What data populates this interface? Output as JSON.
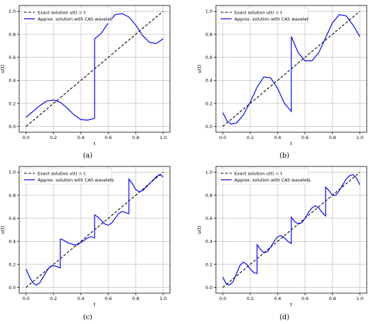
{
  "captions": [
    "(a)",
    "(b)",
    "(c)",
    "(d)"
  ],
  "colors": {
    "exact": "#000000",
    "approx": "#0000ff",
    "grid": "#b0b0b0"
  },
  "chart_data": [
    {
      "id": "a",
      "type": "line",
      "xlabel": "t",
      "ylabel": "u(t)",
      "xlim": [
        0,
        1
      ],
      "ylim": [
        0,
        1
      ],
      "xticks": [
        0.0,
        0.2,
        0.4,
        0.6,
        0.8,
        1.0
      ],
      "yticks": [
        0.0,
        0.2,
        0.4,
        0.6,
        0.8,
        1.0
      ],
      "grid": true,
      "legend_position": "top-left",
      "series": [
        {
          "name": "Exact solution u(t) = t",
          "style": "dashed",
          "color": "#000000",
          "x": [
            0,
            1
          ],
          "y": [
            0,
            1
          ]
        },
        {
          "name": "Approx. solution with CAS wavelet",
          "style": "solid",
          "color": "#0000ff",
          "x": [
            0.0,
            0.05,
            0.1,
            0.15,
            0.2,
            0.25,
            0.3,
            0.35,
            0.4,
            0.45,
            0.5,
            0.5,
            0.55,
            0.6,
            0.65,
            0.7,
            0.75,
            0.8,
            0.85,
            0.9,
            0.95,
            1.0
          ],
          "y": [
            0.08,
            0.13,
            0.18,
            0.22,
            0.23,
            0.21,
            0.16,
            0.1,
            0.06,
            0.055,
            0.07,
            0.76,
            0.81,
            0.9,
            0.97,
            0.98,
            0.95,
            0.88,
            0.79,
            0.73,
            0.72,
            0.76
          ]
        }
      ]
    },
    {
      "id": "b",
      "type": "line",
      "xlabel": "t",
      "ylabel": "u(t)",
      "xlim": [
        0,
        1
      ],
      "ylim": [
        0,
        1
      ],
      "xticks": [
        0.0,
        0.2,
        0.4,
        0.6,
        0.8,
        1.0
      ],
      "yticks": [
        0.0,
        0.2,
        0.4,
        0.6,
        0.8,
        1.0
      ],
      "grid": true,
      "legend_position": "top-left",
      "series": [
        {
          "name": "Exact solution u(t) = t",
          "style": "dashed",
          "color": "#000000",
          "x": [
            0,
            1
          ],
          "y": [
            0,
            1
          ]
        },
        {
          "name": "Approx. solution with CAS wavelet",
          "style": "solid",
          "color": "#0000ff",
          "x": [
            0.0,
            0.03,
            0.06,
            0.1,
            0.15,
            0.2,
            0.25,
            0.3,
            0.35,
            0.4,
            0.45,
            0.5,
            0.5,
            0.55,
            0.6,
            0.65,
            0.7,
            0.75,
            0.8,
            0.85,
            0.9,
            0.95,
            1.0
          ],
          "y": [
            0.12,
            0.05,
            0.02,
            0.03,
            0.1,
            0.21,
            0.34,
            0.43,
            0.42,
            0.33,
            0.2,
            0.13,
            0.78,
            0.64,
            0.57,
            0.57,
            0.64,
            0.77,
            0.9,
            0.97,
            0.96,
            0.88,
            0.78
          ]
        }
      ]
    },
    {
      "id": "c",
      "type": "line",
      "xlabel": "t",
      "ylabel": "u(t)",
      "xlim": [
        0,
        1
      ],
      "ylim": [
        0,
        1
      ],
      "xticks": [
        0.0,
        0.2,
        0.4,
        0.6,
        0.8,
        1.0
      ],
      "yticks": [
        0.0,
        0.2,
        0.4,
        0.6,
        0.8,
        1.0
      ],
      "grid": true,
      "legend_position": "top-left",
      "series": [
        {
          "name": "Exact solution u(t) = t",
          "style": "dashed",
          "color": "#000000",
          "x": [
            0,
            1
          ],
          "y": [
            0,
            1
          ]
        },
        {
          "name": "Approx. solution with CAS wavelets",
          "style": "solid",
          "color": "#0000ff",
          "x": [
            0.0,
            0.025,
            0.05,
            0.075,
            0.1,
            0.125,
            0.15,
            0.175,
            0.2,
            0.225,
            0.25,
            0.25,
            0.275,
            0.3,
            0.325,
            0.35,
            0.375,
            0.4,
            0.425,
            0.45,
            0.475,
            0.5,
            0.5,
            0.525,
            0.55,
            0.575,
            0.6,
            0.625,
            0.65,
            0.675,
            0.7,
            0.725,
            0.75,
            0.75,
            0.775,
            0.8,
            0.825,
            0.85,
            0.875,
            0.9,
            0.925,
            0.95,
            0.975,
            1.0
          ],
          "y": [
            0.16,
            0.09,
            0.04,
            0.02,
            0.04,
            0.09,
            0.14,
            0.18,
            0.19,
            0.18,
            0.17,
            0.42,
            0.41,
            0.39,
            0.38,
            0.37,
            0.37,
            0.39,
            0.41,
            0.43,
            0.44,
            0.43,
            0.63,
            0.61,
            0.58,
            0.55,
            0.54,
            0.56,
            0.6,
            0.64,
            0.66,
            0.65,
            0.64,
            0.94,
            0.9,
            0.85,
            0.83,
            0.84,
            0.87,
            0.9,
            0.93,
            0.96,
            0.98,
            0.96
          ]
        }
      ]
    },
    {
      "id": "d",
      "type": "line",
      "xlabel": "t",
      "ylabel": "u(t)",
      "xlim": [
        0,
        1
      ],
      "ylim": [
        0,
        1
      ],
      "xticks": [
        0.0,
        0.2,
        0.4,
        0.6,
        0.8,
        1.0
      ],
      "yticks": [
        0.0,
        0.2,
        0.4,
        0.6,
        0.8,
        1.0
      ],
      "grid": true,
      "legend_position": "top-left",
      "series": [
        {
          "name": "Exact solution u(t) = t",
          "style": "dashed",
          "color": "#000000",
          "x": [
            0,
            1
          ],
          "y": [
            0,
            1
          ]
        },
        {
          "name": "Approx. solution with CAS wavelets",
          "style": "solid",
          "color": "#0000ff",
          "x": [
            0.0,
            0.025,
            0.05,
            0.075,
            0.1,
            0.125,
            0.15,
            0.175,
            0.2,
            0.225,
            0.25,
            0.25,
            0.275,
            0.3,
            0.325,
            0.35,
            0.375,
            0.4,
            0.425,
            0.45,
            0.475,
            0.5,
            0.5,
            0.525,
            0.55,
            0.575,
            0.6,
            0.625,
            0.65,
            0.675,
            0.7,
            0.725,
            0.75,
            0.75,
            0.775,
            0.8,
            0.825,
            0.85,
            0.875,
            0.9,
            0.925,
            0.95,
            0.975,
            1.0
          ],
          "y": [
            0.09,
            0.03,
            0.02,
            0.05,
            0.12,
            0.19,
            0.22,
            0.2,
            0.16,
            0.13,
            0.12,
            0.37,
            0.33,
            0.3,
            0.31,
            0.35,
            0.4,
            0.44,
            0.45,
            0.43,
            0.4,
            0.38,
            0.61,
            0.57,
            0.55,
            0.56,
            0.6,
            0.65,
            0.69,
            0.71,
            0.69,
            0.65,
            0.62,
            0.87,
            0.84,
            0.8,
            0.8,
            0.84,
            0.89,
            0.94,
            0.97,
            0.98,
            0.95,
            0.89
          ]
        }
      ]
    }
  ]
}
